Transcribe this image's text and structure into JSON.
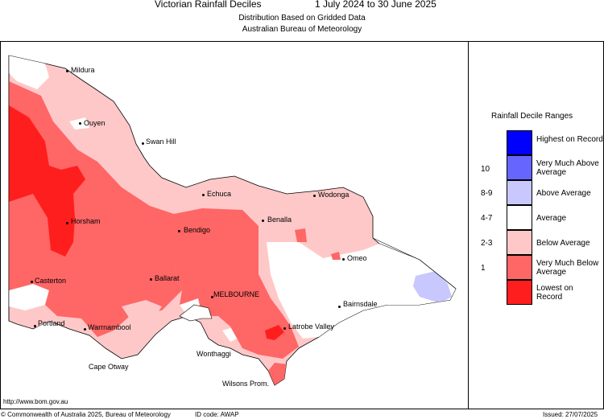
{
  "header": {
    "title": "Victorian Rainfall Deciles",
    "period": "1 July 2024 to 30 June 2025",
    "subtitle1": "Distribution Based on Gridded Data",
    "subtitle2": "Australian Bureau of Meteorology"
  },
  "legend": {
    "title": "Rainfall Decile Ranges",
    "items": [
      {
        "label": "Highest on Record",
        "range": "",
        "color": "#0000ff"
      },
      {
        "label": "Very Much Above Average",
        "range": "10",
        "color": "#6666ff"
      },
      {
        "label": "Above Average",
        "range": "8-9",
        "color": "#c8c8ff"
      },
      {
        "label": "Average",
        "range": "4-7",
        "color": "#ffffff"
      },
      {
        "label": "Below Average",
        "range": "2-3",
        "color": "#ffc8c8"
      },
      {
        "label": "Very Much Below Average",
        "range": "1",
        "color": "#ff6666"
      },
      {
        "label": "Lowest on Record",
        "range": "",
        "color": "#ff1e1e"
      }
    ]
  },
  "places": {
    "mildura": "Mildura",
    "ouyen": "Ouyen",
    "swan_hill": "Swan Hill",
    "echuca": "Echuca",
    "wodonga": "Wodonga",
    "horsham": "Horsham",
    "bendigo": "Bendigo",
    "benalla": "Benalla",
    "omeo": "Omeo",
    "casterton": "Casterton",
    "ballarat": "Ballarat",
    "melbourne": "MELBOURNE",
    "bairnsdale": "Bairnsdale",
    "portland": "Portland",
    "warrnambool": "Warrnambool",
    "latrobe_valley": "Latrobe Valley",
    "wonthaggi": "Wonthaggi",
    "cape_otway": "Cape Otway",
    "wilsons_prom": "Wilsons Prom."
  },
  "footer": {
    "url": "http://www.bom.gov.au",
    "copyright": "© Commonwealth of Australia 2025, Bureau of Meteorology",
    "id_code": "ID code: AWAP",
    "issued": "Issued: 27/07/2025"
  }
}
